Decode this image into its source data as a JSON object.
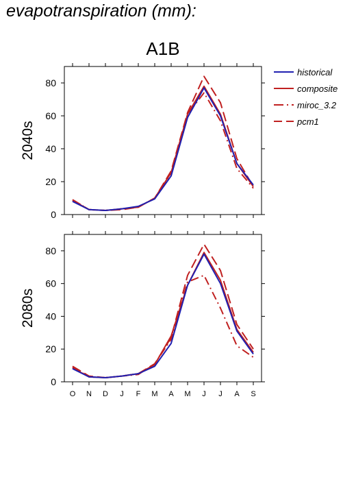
{
  "page_title": "evapotranspiration (mm):",
  "colors": {
    "historical": "#2020b0",
    "scenario": "#c02020",
    "axis": "#000000"
  },
  "chart_data": [
    {
      "type": "line",
      "title": "A1B",
      "ylabel": "2040s",
      "xlabel": "",
      "categories": [
        "O",
        "N",
        "D",
        "J",
        "F",
        "M",
        "A",
        "M",
        "J",
        "J",
        "A",
        "S"
      ],
      "ylim": [
        0,
        90
      ],
      "yticks": [
        0,
        20,
        40,
        60,
        80
      ],
      "grid": false,
      "legend_position": "right",
      "series": [
        {
          "name": "historical",
          "style": "solid",
          "color": "#2020b0",
          "values": [
            8,
            3,
            2.5,
            3.5,
            5,
            9.5,
            23.5,
            59,
            77,
            60,
            31,
            18
          ]
        },
        {
          "name": "composite",
          "style": "solid",
          "color": "#c02020",
          "values": [
            8.5,
            3,
            2.5,
            3.5,
            4.5,
            10,
            25.5,
            61,
            78,
            61,
            31,
            17
          ]
        },
        {
          "name": "miroc_3.2",
          "style": "dashdot",
          "color": "#c02020",
          "values": [
            9,
            3,
            2.5,
            3.5,
            4.5,
            10,
            25,
            61,
            74,
            57,
            28,
            16
          ]
        },
        {
          "name": "pcm1",
          "style": "dashed",
          "color": "#c02020",
          "values": [
            9,
            3,
            2.5,
            3,
            4.5,
            10,
            26.5,
            62,
            84,
            68,
            34,
            17
          ]
        }
      ]
    },
    {
      "type": "line",
      "title": "",
      "ylabel": "2080s",
      "xlabel": "",
      "categories": [
        "O",
        "N",
        "D",
        "J",
        "F",
        "M",
        "A",
        "M",
        "J",
        "J",
        "A",
        "S"
      ],
      "ylim": [
        0,
        90
      ],
      "yticks": [
        0,
        20,
        40,
        60,
        80
      ],
      "grid": false,
      "series": [
        {
          "name": "historical",
          "style": "solid",
          "color": "#2020b0",
          "values": [
            8,
            3,
            2.5,
            3.5,
            5,
            9.5,
            23.5,
            59,
            78,
            60,
            31,
            17
          ]
        },
        {
          "name": "composite",
          "style": "solid",
          "color": "#c02020",
          "values": [
            8.5,
            3,
            2.5,
            3.5,
            5,
            10.5,
            28,
            59,
            79,
            62,
            32,
            18
          ]
        },
        {
          "name": "miroc_3.2",
          "style": "dashdot",
          "color": "#c02020",
          "values": [
            9,
            3,
            2.5,
            3.5,
            4.5,
            11,
            26,
            61,
            65,
            45,
            22,
            15
          ]
        },
        {
          "name": "pcm1",
          "style": "dashed",
          "color": "#c02020",
          "values": [
            9.5,
            3.5,
            2.5,
            3.5,
            5,
            11,
            27,
            65,
            84,
            68,
            35,
            20
          ]
        }
      ]
    }
  ]
}
